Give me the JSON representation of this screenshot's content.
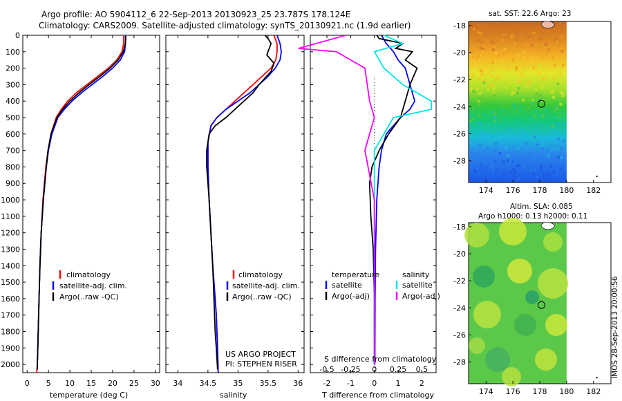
{
  "header": {
    "line1": "Argo profile: AO 5904112_6 22-Sep-2013 20130923_25 23.787S 178.124E",
    "line2": "Climatology: CARS2009. Satellite-adjusted climatology: synTS_20130921.nc (1.9d earlier)"
  },
  "side_label": "IMOS 28-Sep-2013 20:00:56",
  "credits": {
    "project": "US ARGO PROJECT",
    "pi": "PI: STEPHEN RISER"
  },
  "colors": {
    "climatology": "#ff0000",
    "satellite": "#0000ff",
    "argo": "#000000",
    "satellite_salinity": "#00e5e5",
    "argo_salinity": "#ff00ff"
  },
  "chart_data": [
    {
      "id": "temperature",
      "type": "line",
      "xlabel": "temperature (deg C)",
      "ylabel": "",
      "xlim": [
        -1,
        31
      ],
      "ylim": [
        2050,
        0
      ],
      "xticks": [
        0,
        5,
        10,
        15,
        20,
        25,
        30
      ],
      "yticks": [
        0,
        100,
        200,
        300,
        400,
        500,
        600,
        700,
        800,
        900,
        1000,
        1100,
        1200,
        1300,
        1400,
        1500,
        1600,
        1700,
        1800,
        1900,
        2000
      ],
      "legend": [
        "climatology",
        "satellite-adj. clim.",
        "Argo(..raw -QC)"
      ],
      "series": [
        {
          "name": "climatology",
          "color": "#ff0000",
          "x": [
            22.6,
            22.6,
            22.2,
            21.0,
            19.0,
            16.5,
            14.0,
            11.5,
            9.5,
            8.0,
            6.8,
            5.6,
            4.9,
            4.4,
            3.7,
            3.3,
            3.0,
            2.8,
            2.6,
            2.5,
            2.4,
            2.3,
            2.3
          ],
          "y": [
            0,
            50,
            100,
            150,
            200,
            250,
            300,
            350,
            400,
            450,
            500,
            600,
            700,
            800,
            1000,
            1200,
            1400,
            1600,
            1800,
            1900,
            2000,
            2030,
            2050
          ]
        },
        {
          "name": "satellite-adj. clim.",
          "color": "#0000ff",
          "x": [
            23.0,
            23.0,
            22.8,
            21.8,
            20.0,
            17.7,
            15.2,
            12.7,
            10.5,
            8.7,
            7.2,
            5.8,
            5.0,
            4.5,
            3.8,
            3.3,
            3.0,
            2.8,
            2.6,
            2.5,
            2.4,
            2.4
          ],
          "y": [
            0,
            50,
            100,
            150,
            200,
            250,
            300,
            350,
            400,
            450,
            500,
            600,
            700,
            800,
            1000,
            1200,
            1400,
            1600,
            1800,
            1900,
            2000,
            2030
          ]
        },
        {
          "name": "Argo(..raw -QC)",
          "color": "#000000",
          "x": [
            23.1,
            23.0,
            22.5,
            21.3,
            19.4,
            17.0,
            14.5,
            12.1,
            10.0,
            8.3,
            7.0,
            5.6,
            4.9,
            4.5,
            3.8,
            3.3,
            3.0,
            2.8,
            2.6,
            2.5,
            2.4,
            2.4
          ],
          "y": [
            5,
            50,
            100,
            150,
            200,
            250,
            300,
            350,
            400,
            450,
            500,
            600,
            700,
            800,
            1000,
            1200,
            1400,
            1600,
            1800,
            1900,
            2000,
            2030
          ]
        }
      ]
    },
    {
      "id": "salinity",
      "type": "line",
      "xlabel": "salinity",
      "ylabel": "",
      "xlim": [
        33.8,
        36.1
      ],
      "ylim": [
        2050,
        0
      ],
      "xticks": [
        34,
        34.5,
        35,
        35.5,
        36
      ],
      "yticks": [
        0,
        100,
        200,
        300,
        400,
        500,
        600,
        700,
        800,
        900,
        1000,
        1100,
        1200,
        1300,
        1400,
        1500,
        1600,
        1700,
        1800,
        1900,
        2000
      ],
      "legend": [
        "climatology",
        "satellite-adj. clim.",
        "Argo(..raw -QC)"
      ],
      "series": [
        {
          "name": "climatology",
          "color": "#ff0000",
          "x": [
            35.6,
            35.65,
            35.65,
            35.63,
            35.55,
            35.4,
            35.25,
            35.1,
            34.95,
            34.8,
            34.65,
            34.55,
            34.5,
            34.5,
            34.52,
            34.55,
            34.58,
            34.6,
            34.62,
            34.64,
            34.65,
            34.66,
            34.67
          ],
          "y": [
            0,
            50,
            100,
            150,
            200,
            250,
            300,
            350,
            400,
            450,
            500,
            550,
            650,
            800,
            1000,
            1200,
            1400,
            1500,
            1600,
            1700,
            1800,
            1900,
            2050
          ]
        },
        {
          "name": "satellite-adj. clim.",
          "color": "#0000ff",
          "x": [
            35.65,
            35.7,
            35.72,
            35.7,
            35.62,
            35.5,
            35.35,
            35.2,
            35.0,
            34.8,
            34.65,
            34.55,
            34.5,
            34.5,
            34.52,
            34.55,
            34.58,
            34.6,
            34.62,
            34.64,
            34.65,
            34.66,
            34.67
          ],
          "y": [
            0,
            50,
            100,
            150,
            200,
            250,
            300,
            350,
            400,
            450,
            500,
            550,
            650,
            800,
            1000,
            1200,
            1400,
            1500,
            1600,
            1700,
            1800,
            1900,
            2050
          ]
        },
        {
          "name": "Argo(..raw -QC)",
          "color": "#000000",
          "x": [
            35.45,
            35.5,
            35.55,
            35.52,
            35.48,
            35.6,
            35.55,
            35.45,
            35.35,
            35.25,
            35.1,
            34.95,
            34.8,
            34.62,
            34.52,
            34.48,
            34.48,
            34.5,
            34.52,
            34.55,
            34.58,
            34.6,
            34.62,
            34.64,
            34.66
          ],
          "y": [
            0,
            20,
            50,
            80,
            120,
            170,
            220,
            260,
            300,
            350,
            400,
            450,
            500,
            550,
            600,
            700,
            800,
            900,
            1000,
            1200,
            1400,
            1600,
            1800,
            1900,
            2030
          ]
        }
      ]
    },
    {
      "id": "differences",
      "type": "line",
      "xlabel": "T difference from climatology",
      "top_label": "S difference from climatology",
      "xlim": [
        -2.7,
        2.6
      ],
      "ylim": [
        2050,
        0
      ],
      "xticks": [
        -2,
        -1,
        0,
        1,
        2
      ],
      "s_ticks": [
        -0.5,
        -0.25,
        0,
        0.25,
        0.5
      ],
      "yticks": [
        0,
        100,
        200,
        300,
        400,
        500,
        600,
        700,
        800,
        900,
        1000,
        1100,
        1200,
        1300,
        1400,
        1500,
        1600,
        1700,
        1800,
        1900,
        2000
      ],
      "legend": {
        "temperature": "temperature",
        "salinity": "salinity",
        "items": [
          "satellite",
          "Argo(-adj)",
          "satellite",
          "Argo(-adj)"
        ]
      },
      "series": [
        {
          "name": "satellite",
          "group": "temperature",
          "color": "#0000ff",
          "x": [
            0.3,
            0.5,
            0.8,
            1.0,
            1.3,
            1.5,
            1.6,
            1.7,
            1.5,
            1.1,
            0.8,
            0.5,
            0.3,
            0.2,
            0.1,
            0.05,
            0.03,
            0.02
          ],
          "y": [
            0,
            50,
            100,
            150,
            200,
            300,
            350,
            400,
            450,
            500,
            550,
            600,
            700,
            800,
            1000,
            1300,
            1600,
            2000
          ]
        },
        {
          "name": "Argo(-adj)",
          "group": "temperature",
          "color": "#000000",
          "x": [
            0.1,
            0.2,
            1.2,
            0.9,
            1.6,
            1.3,
            1.8,
            1.5,
            1.3,
            1.1,
            0.6,
            0.2,
            -0.1,
            -0.2,
            -0.15,
            -0.05,
            0.0,
            0.0
          ],
          "y": [
            0,
            20,
            50,
            80,
            100,
            150,
            200,
            300,
            400,
            500,
            600,
            700,
            800,
            900,
            1100,
            1300,
            1600,
            2000
          ]
        },
        {
          "name": "satellite",
          "group": "salinity",
          "color": "#00e5e5",
          "x": [
            0.1,
            0.3,
            0.0,
            0.1,
            0.3,
            0.6,
            0.6,
            0.2,
            0.0,
            0.0,
            0.0
          ],
          "y": [
            0,
            50,
            100,
            200,
            300,
            400,
            450,
            500,
            700,
            1000,
            2000
          ]
        },
        {
          "name": "Argo(-adj)",
          "group": "salinity",
          "color": "#ff00ff",
          "x": [
            -0.3,
            -0.8,
            -0.4,
            -0.1,
            -0.05,
            0.0,
            -0.05,
            -0.1,
            0.0,
            0.0
          ],
          "y": [
            0,
            80,
            100,
            200,
            400,
            500,
            600,
            700,
            1000,
            2000
          ]
        }
      ]
    },
    {
      "id": "sst_map",
      "type": "heatmap",
      "title": "sat. SST: 22.6  Argo: 23",
      "xlim": [
        172.7,
        183.3
      ],
      "ylim": [
        -29.6,
        -17.7
      ],
      "xticks": [
        174,
        176,
        178,
        180,
        182
      ],
      "yticks": [
        -18,
        -20,
        -22,
        -24,
        -26,
        -28
      ],
      "data_xmax": 180,
      "marker": {
        "lon": 178.124,
        "lat": -23.787
      }
    },
    {
      "id": "sla_map",
      "type": "heatmap",
      "title": "Altim. SLA: 0.085",
      "subtitle": "Argo h1000: 0.13 h2000: 0.11",
      "xlim": [
        172.7,
        183.3
      ],
      "ylim": [
        -29.6,
        -17.7
      ],
      "xticks": [
        174,
        176,
        178,
        180,
        182
      ],
      "yticks": [
        -18,
        -20,
        -22,
        -24,
        -26,
        -28
      ],
      "data_xmax": 180,
      "marker": {
        "lon": 178.124,
        "lat": -23.787
      }
    }
  ]
}
